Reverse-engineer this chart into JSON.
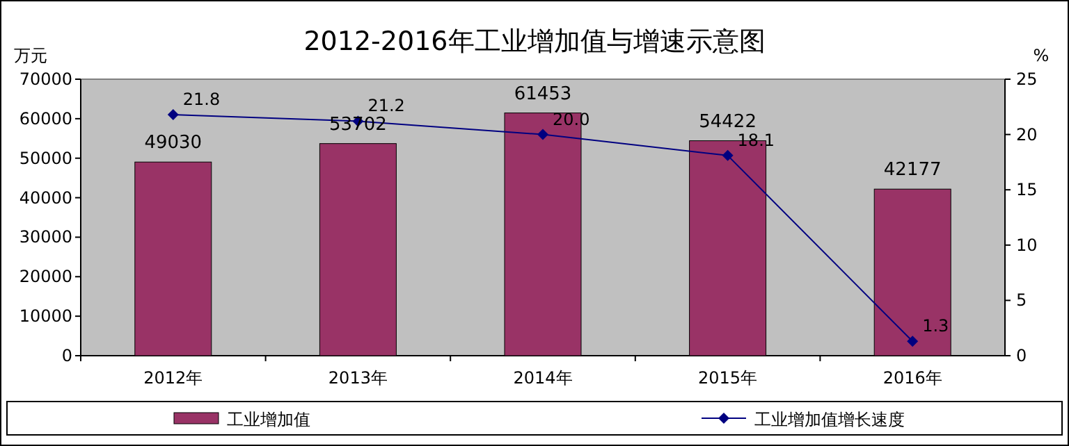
{
  "chart_data": {
    "type": "bar",
    "title": "2012-2016年工业增加值与增速示意图",
    "ylabel": "万元",
    "y2label": "%",
    "categories": [
      "2012年",
      "2013年",
      "2014年",
      "2015年",
      "2016年"
    ],
    "series": [
      {
        "name": "工业增加值",
        "color": "#993366",
        "values": [
          49030,
          53702,
          61453,
          54422,
          42177
        ],
        "value_labels": [
          "49030",
          "53702",
          "61453",
          "54422",
          "42177"
        ]
      },
      {
        "name": "工业增加值增长速度",
        "type": "line",
        "axis": "y2",
        "color": "#000080",
        "marker": "diamond",
        "values": [
          21.8,
          21.2,
          20.0,
          18.1,
          1.3
        ],
        "value_labels": [
          "21.8",
          "21.2",
          "20.0",
          "18.1",
          "1.3"
        ]
      }
    ],
    "ylim": [
      0,
      70000
    ],
    "yticks": [
      0,
      10000,
      20000,
      30000,
      40000,
      50000,
      60000,
      70000
    ],
    "y2lim": [
      0,
      25
    ],
    "y2ticks": [
      0,
      5,
      10,
      15,
      20,
      25
    ],
    "legend": "bottom"
  }
}
